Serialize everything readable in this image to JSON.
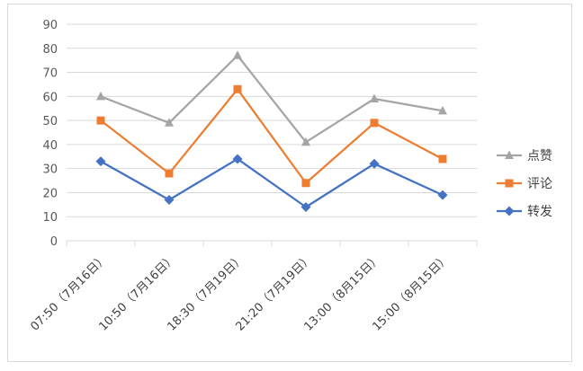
{
  "chart_data": {
    "type": "line",
    "categories": [
      "07:50（7月16日）",
      "10:50（7月16日）",
      "18:30（7月19日）",
      "21:20（7月19日）",
      "13:00（8月15日）",
      "15:00（8月15日）"
    ],
    "series": [
      {
        "name": "点赞",
        "values": [
          60,
          49,
          77,
          41,
          59,
          54
        ],
        "color": "#a5a5a5",
        "marker": "triangle"
      },
      {
        "name": "评论",
        "values": [
          50,
          28,
          63,
          24,
          49,
          34
        ],
        "color": "#ed7d31",
        "marker": "square"
      },
      {
        "name": "转发",
        "values": [
          33,
          17,
          34,
          14,
          32,
          19
        ],
        "color": "#4472c4",
        "marker": "diamond"
      }
    ],
    "ylim": [
      0,
      90
    ],
    "yticks": [
      0,
      10,
      20,
      30,
      40,
      50,
      60,
      70,
      80,
      90
    ],
    "grid": true,
    "legend": "right",
    "title": "",
    "xlabel": "",
    "ylabel": ""
  }
}
